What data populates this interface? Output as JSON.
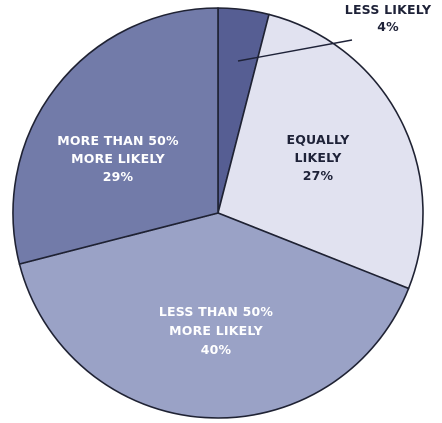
{
  "chart_data": {
    "type": "pie",
    "slices": [
      {
        "label": [
          "LESS LIKELY"
        ],
        "value": 4,
        "value_label": "4%",
        "color": "#565e93"
      },
      {
        "label": [
          "EQUALLY",
          "LIKELY"
        ],
        "value": 27,
        "value_label": "27%",
        "color": "#e1e2f0"
      },
      {
        "label": [
          "LESS THAN 50%",
          "MORE LIKELY"
        ],
        "value": 40,
        "value_label": "40%",
        "color": "#9aa2c6"
      },
      {
        "label": [
          "MORE THAN 50%",
          "MORE LIKELY"
        ],
        "value": 29,
        "value_label": "29%",
        "color": "#727ba9"
      }
    ]
  }
}
